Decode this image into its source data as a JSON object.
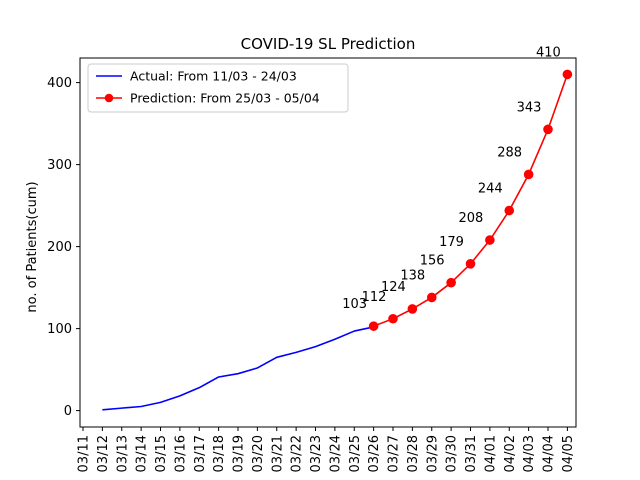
{
  "chart_data": {
    "type": "line",
    "title": "COVID-19 SL Prediction",
    "xlabel": "",
    "ylabel": "no. of Patients(cum)",
    "ylim": [
      -20,
      430
    ],
    "yticks": [
      0,
      100,
      200,
      300,
      400
    ],
    "x_ticks": [
      "03/11",
      "03/12",
      "03/13",
      "03/14",
      "03/15",
      "03/16",
      "03/17",
      "03/18",
      "03/19",
      "03/20",
      "03/21",
      "03/22",
      "03/23",
      "03/24",
      "03/25",
      "03/26",
      "03/27",
      "03/28",
      "03/29",
      "03/30",
      "03/31",
      "04/01",
      "04/02",
      "04/03",
      "04/04",
      "04/05"
    ],
    "legend_position": "top-left",
    "grid": false,
    "series": [
      {
        "name": "Actual: From 11/03 - 24/03",
        "color": "#0000ff",
        "marker": "none",
        "x": [
          "03/12",
          "03/13",
          "03/14",
          "03/15",
          "03/16",
          "03/17",
          "03/18",
          "03/19",
          "03/20",
          "03/21",
          "03/22",
          "03/23",
          "03/24",
          "03/25",
          "03/26"
        ],
        "values": [
          1,
          3,
          5,
          10,
          18,
          28,
          41,
          45,
          52,
          65,
          71,
          78,
          87,
          97,
          102
        ]
      },
      {
        "name": "Prediction: From 25/03 - 05/04",
        "color": "#ff0000",
        "marker": "circle",
        "x": [
          "03/26",
          "03/27",
          "03/28",
          "03/29",
          "03/30",
          "03/31",
          "04/01",
          "04/02",
          "04/03",
          "04/04",
          "04/05"
        ],
        "values": [
          103,
          112,
          124,
          138,
          156,
          179,
          208,
          244,
          288,
          343,
          410
        ],
        "labels": [
          "103",
          "112",
          "124",
          "138",
          "156",
          "179",
          "208",
          "244",
          "288",
          "343",
          "410"
        ]
      }
    ]
  }
}
